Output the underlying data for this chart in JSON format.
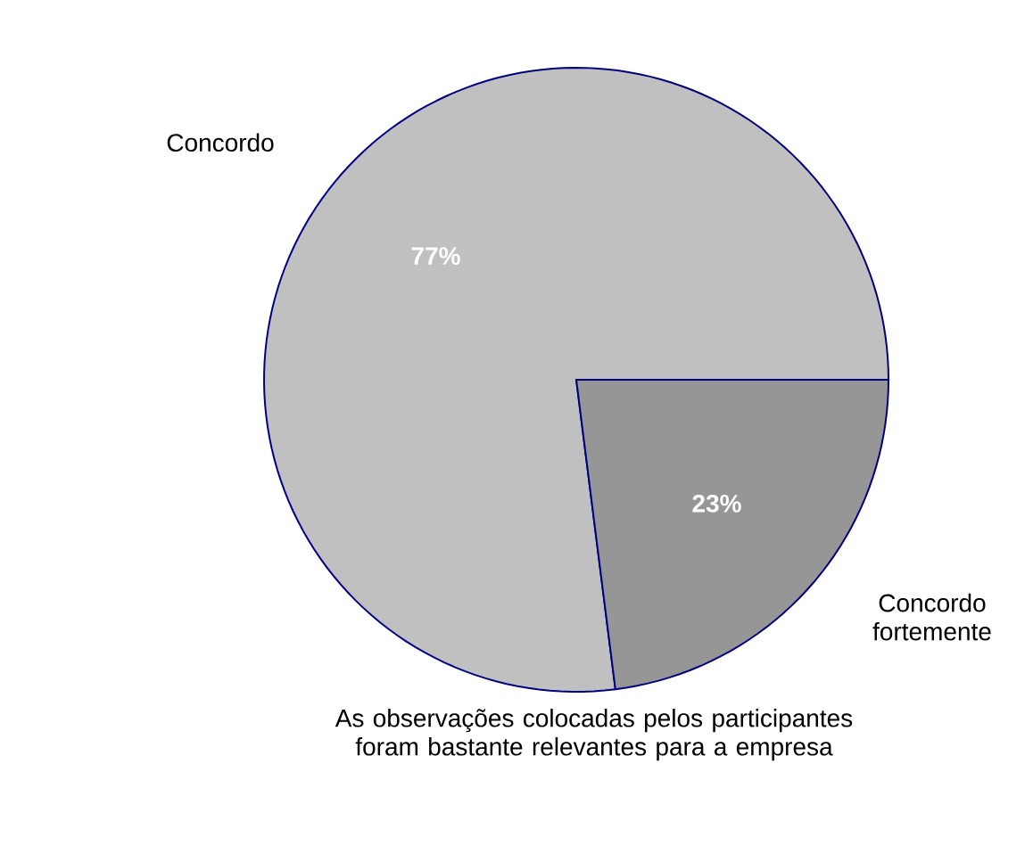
{
  "chart_data": {
    "type": "pie",
    "title": "As observações colocadas pelos participantes foram bastante relevantes para a empresa",
    "categories": [
      "Concordo",
      "Concordo fortemente"
    ],
    "values": [
      77,
      23
    ],
    "value_labels": [
      "77%",
      "23%"
    ],
    "colors": [
      "#c0c0c0",
      "#969696"
    ]
  }
}
